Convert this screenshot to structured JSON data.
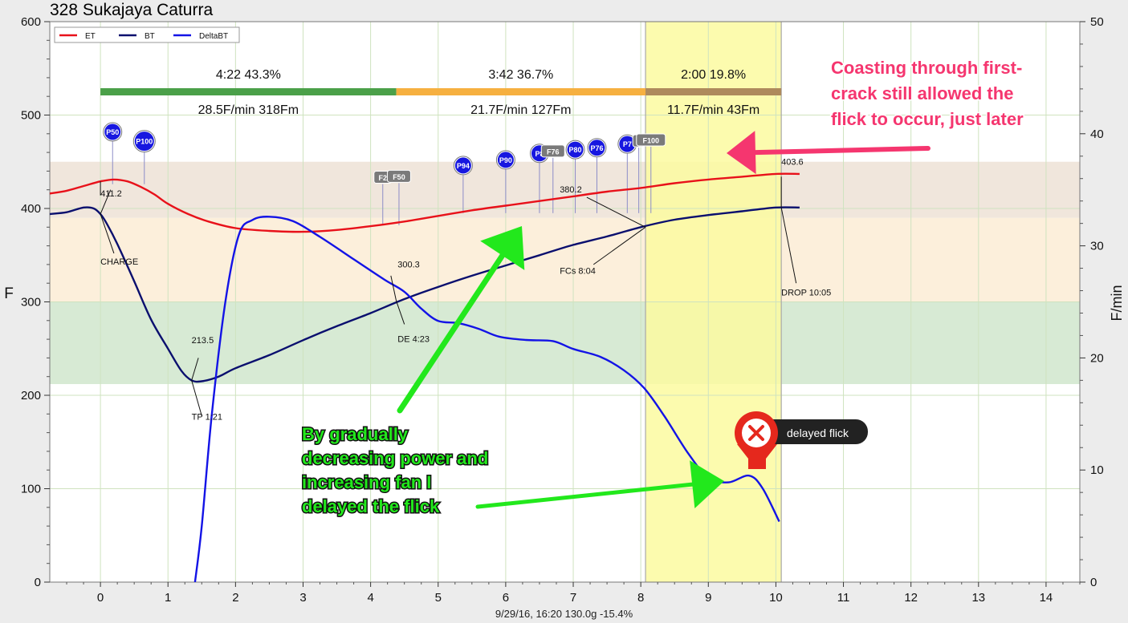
{
  "title": "328 Sukajaya Caturra",
  "footer": "9/29/16, 16:20   130.0g   -15.4%",
  "chart_data": {
    "type": "line",
    "xlim": [
      -0.75,
      14.5
    ],
    "ylim_left": [
      0,
      600
    ],
    "ylim_right": [
      0,
      50
    ],
    "ylabel": "F",
    "ylabel_right": "F/min",
    "x_ticks": [
      0,
      1,
      2,
      3,
      4,
      5,
      6,
      7,
      8,
      9,
      10,
      11,
      12,
      13,
      14
    ],
    "y_ticks_left": [
      0,
      100,
      200,
      300,
      400,
      500,
      600
    ],
    "y_ticks_right": [
      0,
      10,
      20,
      30,
      40,
      50
    ],
    "grid": true,
    "legend": {
      "placement": "top-left",
      "entries": [
        {
          "name": "ET",
          "color": "#e8111a"
        },
        {
          "name": "BT",
          "color": "#0a0f6e"
        },
        {
          "name": "DeltaBT",
          "color": "#1313e6"
        }
      ]
    },
    "series": [
      {
        "name": "ET",
        "axis": "left",
        "color": "#e8111a",
        "points": [
          [
            -0.75,
            416
          ],
          [
            -0.5,
            419
          ],
          [
            -0.25,
            424
          ],
          [
            0,
            429
          ],
          [
            0.2,
            431
          ],
          [
            0.4,
            429
          ],
          [
            0.6,
            423
          ],
          [
            0.8,
            415
          ],
          [
            1,
            405
          ],
          [
            1.3,
            394
          ],
          [
            1.6,
            386
          ],
          [
            2,
            379
          ],
          [
            2.5,
            376
          ],
          [
            3,
            375
          ],
          [
            3.5,
            377
          ],
          [
            4,
            381
          ],
          [
            4.5,
            386
          ],
          [
            5,
            392
          ],
          [
            5.5,
            398
          ],
          [
            6,
            403
          ],
          [
            6.5,
            408
          ],
          [
            7,
            413
          ],
          [
            7.5,
            418
          ],
          [
            8,
            422
          ],
          [
            8.5,
            427
          ],
          [
            9,
            431
          ],
          [
            9.5,
            434
          ],
          [
            10,
            437
          ],
          [
            10.35,
            437
          ]
        ]
      },
      {
        "name": "BT",
        "axis": "left",
        "color": "#0a0f6e",
        "points": [
          [
            -0.75,
            394
          ],
          [
            -0.5,
            396
          ],
          [
            -0.25,
            401
          ],
          [
            -0.1,
            400
          ],
          [
            0,
            394
          ],
          [
            0.1,
            383
          ],
          [
            0.25,
            362
          ],
          [
            0.5,
            322
          ],
          [
            0.75,
            281
          ],
          [
            1,
            250
          ],
          [
            1.2,
            226
          ],
          [
            1.35,
            216
          ],
          [
            1.5,
            215
          ],
          [
            1.75,
            220
          ],
          [
            2,
            229
          ],
          [
            2.5,
            243
          ],
          [
            3,
            259
          ],
          [
            3.5,
            274
          ],
          [
            4,
            288
          ],
          [
            4.5,
            303
          ],
          [
            5,
            316
          ],
          [
            5.5,
            328
          ],
          [
            6,
            339
          ],
          [
            6.5,
            350
          ],
          [
            7,
            361
          ],
          [
            7.5,
            370
          ],
          [
            8,
            380
          ],
          [
            8.5,
            388
          ],
          [
            9,
            393
          ],
          [
            9.5,
            397
          ],
          [
            10,
            401
          ],
          [
            10.35,
            401
          ]
        ]
      },
      {
        "name": "DeltaBT",
        "axis": "right",
        "color": "#1313e6",
        "points": [
          [
            1.4,
            0
          ],
          [
            1.5,
            5
          ],
          [
            1.65,
            15
          ],
          [
            1.85,
            25
          ],
          [
            2.05,
            31
          ],
          [
            2.25,
            32.3
          ],
          [
            2.5,
            32.6
          ],
          [
            2.85,
            32.2
          ],
          [
            3.25,
            30.8
          ],
          [
            3.75,
            28.8
          ],
          [
            4.2,
            27
          ],
          [
            4.5,
            25.9
          ],
          [
            4.75,
            24.4
          ],
          [
            5,
            23.3
          ],
          [
            5.3,
            23.1
          ],
          [
            5.6,
            22.6
          ],
          [
            5.9,
            21.9
          ],
          [
            6.3,
            21.6
          ],
          [
            6.7,
            21.5
          ],
          [
            7,
            20.8
          ],
          [
            7.4,
            20.1
          ],
          [
            7.75,
            18.9
          ],
          [
            8.05,
            17.3
          ],
          [
            8.35,
            14.8
          ],
          [
            8.7,
            11.5
          ],
          [
            9,
            9.3
          ],
          [
            9.3,
            8.9
          ],
          [
            9.6,
            9.5
          ],
          [
            9.8,
            8.4
          ],
          [
            10.05,
            5.4
          ]
        ]
      }
    ],
    "phases": [
      {
        "label": "4:22  43.3%",
        "rate": "28.5F/min  318Fm",
        "color": "#4ba049",
        "start": 0,
        "end": 4.38
      },
      {
        "label": "3:42  36.7%",
        "rate": "21.7F/min  127Fm",
        "color": "#f6b040",
        "start": 4.38,
        "end": 8.07
      },
      {
        "label": "2:00  19.8%",
        "rate": "11.7F/min  43Fm",
        "color": "#ae8a5c",
        "start": 8.07,
        "end": 10.08
      }
    ],
    "bands": [
      {
        "from": 212,
        "to": 300,
        "color": "#d7ead4"
      },
      {
        "from": 300,
        "to": 390,
        "color": "#fcefdb"
      },
      {
        "from": 390,
        "to": 450,
        "color": "#f0e6dc"
      }
    ],
    "highlight": {
      "from": 8.07,
      "to": 10.08,
      "color": "#fcfaa0"
    },
    "event_annotations": [
      {
        "value": "411.2",
        "label": "CHARGE"
      },
      {
        "value": "213.5",
        "label": "TP 1:21"
      },
      {
        "value": "300.3",
        "label": "DE 4:23"
      },
      {
        "value": "380.2",
        "label": "FCs 8:04"
      },
      {
        "value": "403.6",
        "label": "DROP 10:05"
      }
    ],
    "markers": [
      {
        "text": "P50",
        "style": "blue",
        "x": 0.18,
        "y": 482
      },
      {
        "text": "P100",
        "style": "blue",
        "x": 0.65,
        "y": 472
      },
      {
        "text": "F2",
        "style": "gray",
        "x": 4.18,
        "y": 433
      },
      {
        "text": "F50",
        "style": "gray",
        "x": 4.42,
        "y": 434
      },
      {
        "text": "P94",
        "style": "blue",
        "x": 5.37,
        "y": 446
      },
      {
        "text": "P90",
        "style": "blue",
        "x": 6.0,
        "y": 452
      },
      {
        "text": "P8",
        "style": "blue",
        "x": 6.5,
        "y": 459
      },
      {
        "text": "F76",
        "style": "gray",
        "x": 6.7,
        "y": 461
      },
      {
        "text": "P80",
        "style": "blue",
        "x": 7.03,
        "y": 463
      },
      {
        "text": "P76",
        "style": "blue",
        "x": 7.35,
        "y": 465
      },
      {
        "text": "P7",
        "style": "blue",
        "x": 7.8,
        "y": 469
      },
      {
        "text": "F",
        "style": "gray",
        "x": 7.97,
        "y": 472
      },
      {
        "text": "F100",
        "style": "gray",
        "x": 8.15,
        "y": 473
      }
    ]
  },
  "annotations": {
    "pink_text": [
      "Coasting through first-",
      "crack still allowed the",
      "flick to occur, just later"
    ],
    "green_text": [
      "By gradually",
      "decreasing power and",
      "increasing fan I",
      "delayed the flick"
    ],
    "callout": "delayed flick",
    "colors": {
      "pink": "#f5366f",
      "green": "#22e81c",
      "callout_pin": "#e5281d"
    }
  }
}
